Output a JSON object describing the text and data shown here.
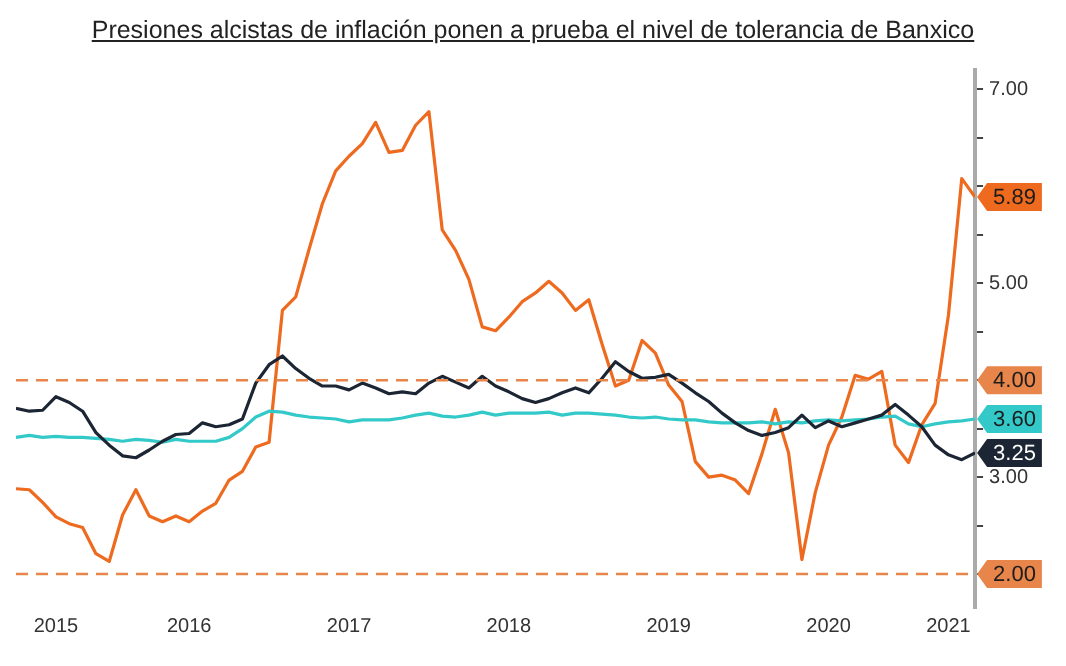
{
  "chart_data": {
    "type": "line",
    "title": "Presiones alcistas de inflación ponen a prueba el nivel de tolerancia de Banxico",
    "x": [
      "2015-05",
      "2015-06",
      "2015-07",
      "2015-08",
      "2015-09",
      "2015-10",
      "2015-11",
      "2015-12",
      "2016-01",
      "2016-02",
      "2016-03",
      "2016-04",
      "2016-05",
      "2016-06",
      "2016-07",
      "2016-08",
      "2016-09",
      "2016-10",
      "2016-11",
      "2016-12",
      "2017-01",
      "2017-02",
      "2017-03",
      "2017-04",
      "2017-05",
      "2017-06",
      "2017-07",
      "2017-08",
      "2017-09",
      "2017-10",
      "2017-11",
      "2017-12",
      "2018-01",
      "2018-02",
      "2018-03",
      "2018-04",
      "2018-05",
      "2018-06",
      "2018-07",
      "2018-08",
      "2018-09",
      "2018-10",
      "2018-11",
      "2018-12",
      "2019-01",
      "2019-02",
      "2019-03",
      "2019-04",
      "2019-05",
      "2019-06",
      "2019-07",
      "2019-08",
      "2019-09",
      "2019-10",
      "2019-11",
      "2019-12",
      "2020-01",
      "2020-02",
      "2020-03",
      "2020-04",
      "2020-05",
      "2020-06",
      "2020-07",
      "2020-08",
      "2020-09",
      "2020-10",
      "2020-11",
      "2020-12",
      "2021-01",
      "2021-02",
      "2021-03",
      "2021-04",
      "2021-05"
    ],
    "series": [
      {
        "color": "#1c2533",
        "values": [
          3.71,
          3.68,
          3.69,
          3.83,
          3.77,
          3.68,
          3.46,
          3.33,
          3.22,
          3.2,
          3.28,
          3.37,
          3.44,
          3.45,
          3.56,
          3.52,
          3.54,
          3.6,
          3.97,
          4.16,
          4.25,
          4.12,
          4.02,
          3.94,
          3.94,
          3.9,
          3.97,
          3.92,
          3.86,
          3.88,
          3.86,
          3.97,
          4.04,
          3.98,
          3.92,
          4.04,
          3.94,
          3.88,
          3.81,
          3.77,
          3.81,
          3.87,
          3.92,
          3.87,
          4.02,
          4.19,
          4.09,
          4.02,
          4.03,
          4.06,
          3.97,
          3.87,
          3.78,
          3.66,
          3.56,
          3.48,
          3.43,
          3.46,
          3.51,
          3.64,
          3.51,
          3.58,
          3.52,
          3.56,
          3.6,
          3.64,
          3.75,
          3.64,
          3.52,
          3.33,
          3.23,
          3.18,
          3.25
        ],
        "value_labels": [
          null,
          null,
          null,
          null,
          null,
          null,
          null,
          null,
          null,
          null,
          null,
          null,
          null,
          null,
          null,
          null,
          null,
          null,
          null,
          null,
          null,
          null,
          null,
          null,
          null,
          null,
          null,
          null,
          null,
          null,
          null,
          null,
          null,
          null,
          null,
          null,
          null,
          null,
          null,
          null,
          null,
          null,
          null,
          null,
          null,
          null,
          null,
          null,
          null,
          null,
          null,
          null,
          null,
          null,
          null,
          null,
          null,
          null,
          null,
          null,
          null,
          null,
          null,
          null,
          null,
          null,
          null,
          null,
          null,
          null,
          null,
          null,
          "3.25"
        ]
      },
      {
        "color": "#33c9c9",
        "values": [
          3.41,
          3.43,
          3.41,
          3.42,
          3.41,
          3.41,
          3.4,
          3.39,
          3.37,
          3.39,
          3.38,
          3.36,
          3.39,
          3.37,
          3.37,
          3.37,
          3.41,
          3.5,
          3.62,
          3.68,
          3.67,
          3.64,
          3.62,
          3.61,
          3.6,
          3.57,
          3.59,
          3.59,
          3.59,
          3.61,
          3.64,
          3.66,
          3.63,
          3.62,
          3.64,
          3.67,
          3.64,
          3.66,
          3.66,
          3.66,
          3.67,
          3.64,
          3.66,
          3.66,
          3.65,
          3.64,
          3.62,
          3.61,
          3.62,
          3.6,
          3.59,
          3.59,
          3.57,
          3.56,
          3.56,
          3.56,
          3.57,
          3.55,
          3.57,
          3.56,
          3.58,
          3.59,
          3.58,
          3.59,
          3.6,
          3.62,
          3.63,
          3.55,
          3.52,
          3.55,
          3.57,
          3.58,
          3.6
        ],
        "value_labels": [
          null,
          null,
          null,
          null,
          null,
          null,
          null,
          null,
          null,
          null,
          null,
          null,
          null,
          null,
          null,
          null,
          null,
          null,
          null,
          null,
          null,
          null,
          null,
          null,
          null,
          null,
          null,
          null,
          null,
          null,
          null,
          null,
          null,
          null,
          null,
          null,
          null,
          null,
          null,
          null,
          null,
          null,
          null,
          null,
          null,
          null,
          null,
          null,
          null,
          null,
          null,
          null,
          null,
          null,
          null,
          null,
          null,
          null,
          null,
          null,
          null,
          null,
          null,
          null,
          null,
          null,
          null,
          null,
          null,
          null,
          null,
          null,
          "3.60"
        ]
      },
      {
        "color": "#ee6a1f",
        "values": [
          2.88,
          2.87,
          2.74,
          2.59,
          2.52,
          2.48,
          2.21,
          2.13,
          2.61,
          2.87,
          2.6,
          2.54,
          2.6,
          2.54,
          2.65,
          2.73,
          2.97,
          3.06,
          3.31,
          3.36,
          4.72,
          4.86,
          5.35,
          5.82,
          6.16,
          6.31,
          6.44,
          6.66,
          6.35,
          6.37,
          6.63,
          6.77,
          5.55,
          5.34,
          5.04,
          4.55,
          4.51,
          4.65,
          4.81,
          4.9,
          5.02,
          4.9,
          4.72,
          4.83,
          4.37,
          3.94,
          4.0,
          4.41,
          4.28,
          3.95,
          3.78,
          3.16,
          3.0,
          3.02,
          2.97,
          2.83,
          3.24,
          3.7,
          3.25,
          2.15,
          2.84,
          3.33,
          3.62,
          4.05,
          4.01,
          4.09,
          3.33,
          3.15,
          3.54,
          3.76,
          4.67,
          6.08,
          5.89
        ],
        "value_labels": [
          null,
          null,
          null,
          null,
          null,
          null,
          null,
          null,
          null,
          null,
          null,
          null,
          null,
          null,
          null,
          null,
          null,
          null,
          null,
          null,
          null,
          null,
          null,
          null,
          null,
          null,
          null,
          null,
          null,
          null,
          null,
          null,
          null,
          null,
          null,
          null,
          null,
          null,
          null,
          null,
          null,
          null,
          null,
          null,
          null,
          null,
          null,
          null,
          null,
          null,
          null,
          null,
          null,
          null,
          null,
          null,
          null,
          null,
          null,
          null,
          null,
          null,
          null,
          null,
          null,
          null,
          null,
          null,
          null,
          null,
          null,
          null,
          "5.89"
        ]
      }
    ],
    "xlim": [
      "2015-05",
      "2021-05"
    ],
    "xticks": [
      {
        "value": "2015-08",
        "label": "2015"
      },
      {
        "value": "2016-06",
        "label": "2016"
      },
      {
        "value": "2017-06",
        "label": "2017"
      },
      {
        "value": "2018-06",
        "label": "2018"
      },
      {
        "value": "2019-06",
        "label": "2019"
      },
      {
        "value": "2020-06",
        "label": "2020"
      },
      {
        "value": "2021-03",
        "label": "2021"
      }
    ],
    "ylim": [
      1.65,
      7.2
    ],
    "yticks": [
      {
        "value": 2,
        "label": null
      },
      {
        "value": 2.5,
        "label": null
      },
      {
        "value": 3,
        "label": "3.00"
      },
      {
        "value": 3.5,
        "label": null
      },
      {
        "value": 4,
        "label": null
      },
      {
        "value": 4.5,
        "label": null
      },
      {
        "value": 5,
        "label": "5.00"
      },
      {
        "value": 5.5,
        "label": null
      },
      {
        "value": 6,
        "label": null
      },
      {
        "value": 6.5,
        "label": null
      },
      {
        "value": 7,
        "label": "7.00"
      }
    ],
    "ref_lines": [
      {
        "axis": "y",
        "value": 4,
        "label": "4.00",
        "color": "#e8854a",
        "line_style": "dashed"
      },
      {
        "axis": "y",
        "value": 2,
        "label": "2.00",
        "color": "#e8854a",
        "line_style": "dashed"
      }
    ],
    "grid": false,
    "legend": false,
    "marker": "none",
    "line_style": "solid"
  }
}
